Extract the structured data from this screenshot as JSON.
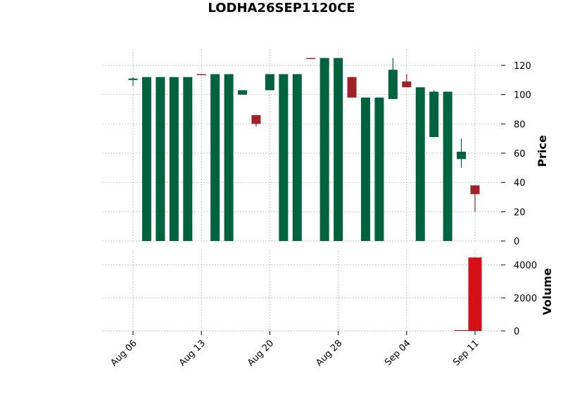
{
  "chart_data": {
    "type": "candlestick",
    "title": "LODHA26SEP1120CE",
    "price_label": "Price",
    "volume_label": "Volume",
    "price_ylim": [
      0,
      128
    ],
    "price_ticks": [
      0,
      20,
      40,
      60,
      80,
      100,
      120
    ],
    "volume_ylim": [
      0,
      4600
    ],
    "volume_ticks": [
      0,
      2000,
      4000
    ],
    "x_tick_labels": [
      {
        "label": "Aug 06",
        "index": 0
      },
      {
        "label": "Aug 13",
        "index": 5
      },
      {
        "label": "Aug 20",
        "index": 10
      },
      {
        "label": "Aug 28",
        "index": 15
      },
      {
        "label": "Sep 04",
        "index": 20
      },
      {
        "label": "Sep 11",
        "index": 25
      }
    ],
    "colors": {
      "up": "#006340",
      "down": "#a02128",
      "volume_main": "#d40f18",
      "grid": "#b0b0b0"
    },
    "candles": [
      {
        "open": 110,
        "high": 112,
        "low": 106,
        "close": 111
      },
      {
        "open": 0,
        "high": 112,
        "low": 0,
        "close": 112
      },
      {
        "open": 0,
        "high": 112,
        "low": 0,
        "close": 112
      },
      {
        "open": 0,
        "high": 112,
        "low": 0,
        "close": 112
      },
      {
        "open": 0,
        "high": 112,
        "low": 0,
        "close": 112
      },
      {
        "open": 114,
        "high": 114,
        "low": 113.5,
        "close": 113.7
      },
      {
        "open": 0,
        "high": 114,
        "low": 0,
        "close": 114
      },
      {
        "open": 0,
        "high": 114,
        "low": 0,
        "close": 114
      },
      {
        "open": 100,
        "high": 103,
        "low": 100,
        "close": 103
      },
      {
        "open": 86,
        "high": 86,
        "low": 78,
        "close": 80
      },
      {
        "open": 103,
        "high": 114,
        "low": 103,
        "close": 114
      },
      {
        "open": 0,
        "high": 114,
        "low": 0,
        "close": 114
      },
      {
        "open": 0,
        "high": 114,
        "low": 0,
        "close": 114
      },
      {
        "open": 125,
        "high": 125,
        "low": 124.5,
        "close": 124.7
      },
      {
        "open": 0,
        "high": 125,
        "low": 0,
        "close": 125
      },
      {
        "open": 0,
        "high": 125,
        "low": 0,
        "close": 125
      },
      {
        "open": 112,
        "high": 112,
        "low": 98,
        "close": 98
      },
      {
        "open": 0,
        "high": 98,
        "low": 0,
        "close": 98
      },
      {
        "open": 0,
        "high": 98,
        "low": 0,
        "close": 98
      },
      {
        "open": 97,
        "high": 125,
        "low": 97,
        "close": 117
      },
      {
        "open": 109,
        "high": 114,
        "low": 105,
        "close": 105
      },
      {
        "open": 0,
        "high": 105,
        "low": 0,
        "close": 105
      },
      {
        "open": 71,
        "high": 103,
        "low": 71,
        "close": 102
      },
      {
        "open": 0,
        "high": 102,
        "low": 0,
        "close": 102
      },
      {
        "open": 56,
        "high": 70,
        "low": 50,
        "close": 61
      },
      {
        "open": 38,
        "high": 38,
        "low": 20,
        "close": 32
      }
    ],
    "volumes": [
      0,
      0,
      0,
      0,
      0,
      0,
      0,
      0,
      0,
      0,
      0,
      0,
      0,
      0,
      0,
      0,
      0,
      0,
      0,
      0,
      0,
      0,
      0,
      0,
      50,
      4450
    ]
  }
}
